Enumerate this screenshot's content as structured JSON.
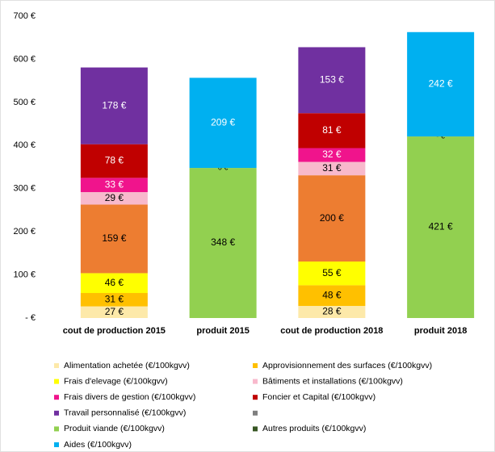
{
  "chart_data": {
    "type": "stacked-bar",
    "categories": [
      "cout de production 2015",
      "produit 2015",
      "cout de production 2018",
      "produit 2018"
    ],
    "ylim": [
      0,
      700
    ],
    "yticks": [
      {
        "value": 0,
        "label": "-  €"
      },
      {
        "value": 100,
        "label": "100 €"
      },
      {
        "value": 200,
        "label": "200 €"
      },
      {
        "value": 300,
        "label": "300 €"
      },
      {
        "value": 400,
        "label": "400 €"
      },
      {
        "value": 500,
        "label": "500 €"
      },
      {
        "value": 600,
        "label": "600 €"
      },
      {
        "value": 700,
        "label": "700 €"
      }
    ],
    "series": [
      {
        "name": "Alimentation achetée (€/100kgvv)",
        "color": "#fde9a9",
        "label_color": "#000",
        "values": [
          27,
          null,
          28,
          null
        ],
        "value_labels": [
          "27 €",
          null,
          "28 €",
          null
        ]
      },
      {
        "name": "Approvisionnement des surfaces (€/100kgvv)",
        "color": "#ffc000",
        "label_color": "#000",
        "values": [
          31,
          null,
          48,
          null
        ],
        "value_labels": [
          "31 €",
          null,
          "48 €",
          null
        ]
      },
      {
        "name": "Frais d'elevage (€/100kgvv)",
        "color": "#ffff00",
        "label_color": "#000",
        "values": [
          46,
          null,
          55,
          null
        ],
        "value_labels": [
          "46 €",
          null,
          "55 €",
          null
        ]
      },
      {
        "color": "#ed7d31",
        "legend_color": "#7f7f7f",
        "label_color": "#000",
        "values": [
          159,
          null,
          200,
          null
        ],
        "value_labels": [
          "159 €",
          null,
          "200 €",
          null
        ]
      },
      {
        "name": "Bâtiments et installations (€/100kgvv)",
        "color": "#f8b9cc",
        "label_color": "#000",
        "values": [
          29,
          null,
          31,
          null
        ],
        "value_labels": [
          "29 €",
          null,
          "31 €",
          null
        ]
      },
      {
        "name": "Frais divers de gestion (€/100kgvv)",
        "color": "#f0148c",
        "label_color": "#fff",
        "values": [
          33,
          null,
          32,
          null
        ],
        "value_labels": [
          "33 €",
          null,
          "32 €",
          null
        ]
      },
      {
        "name": "Foncier et Capital (€/100kgvv)",
        "color": "#c00000",
        "label_color": "#fff",
        "values": [
          78,
          null,
          81,
          null
        ],
        "value_labels": [
          "78 €",
          null,
          "81 €",
          null
        ]
      },
      {
        "name": "Travail personnalisé (€/100kgvv)",
        "color": "#7030a0",
        "label_color": "#fff",
        "values": [
          178,
          null,
          153,
          null
        ],
        "value_labels": [
          "178 €",
          null,
          "153 €",
          null
        ]
      },
      {
        "name": "Produit viande (€/100kgvv)",
        "color": "#92d050",
        "label_color": "#000",
        "values": [
          null,
          348,
          null,
          421
        ],
        "value_labels": [
          null,
          "348 €",
          null,
          "421 €"
        ]
      },
      {
        "name": "Autres produits (€/100kgvv)",
        "color": "#375623",
        "label_color": "#000",
        "values": [
          null,
          0,
          null,
          0
        ],
        "value_labels": [
          null,
          "0 €",
          null,
          "-  €"
        ]
      },
      {
        "name": "Aides (€/100kgvv)",
        "color": "#00b0f0",
        "label_color": "#fff",
        "values": [
          null,
          209,
          null,
          242
        ],
        "value_labels": [
          null,
          "209 €",
          null,
          "242 €"
        ]
      }
    ]
  }
}
